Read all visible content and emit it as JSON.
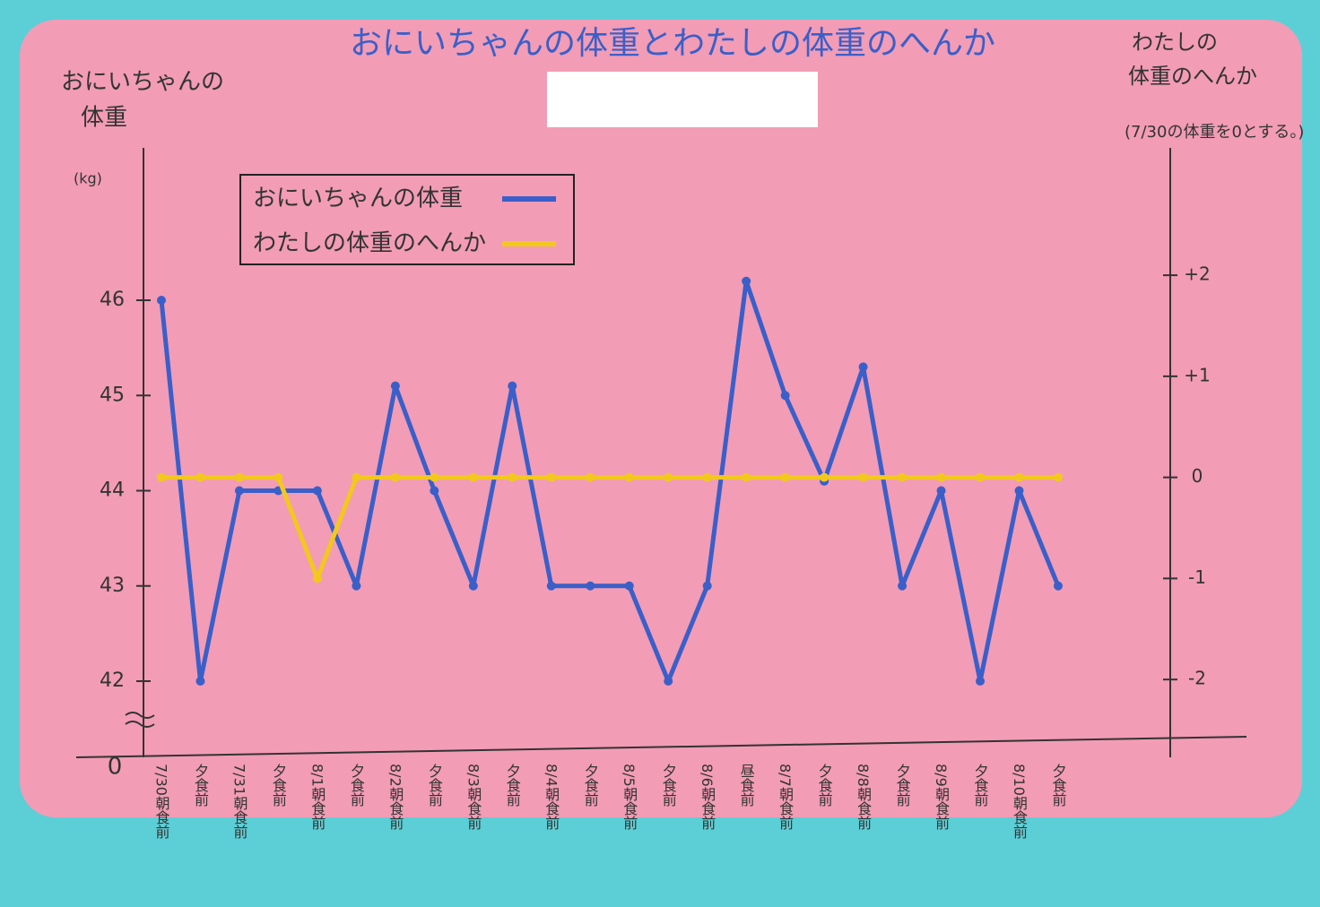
{
  "chart_data": {
    "type": "line",
    "title": "おにいちゃんの体重とわたしの体重のへんか",
    "y_label": [
      "おにいちゃんの",
      "体重"
    ],
    "y_unit": "(kg)",
    "y2_label": [
      "わたしの",
      "体重のへんか",
      "(7/30の体重を0とする。)"
    ],
    "origin_label": "0",
    "categories": [
      "7/30朝食前",
      "夕食前",
      "7/31朝食前",
      "夕食前",
      "8/1朝食前",
      "夕食前",
      "8/2朝食前",
      "夕食前",
      "8/3朝食前",
      "夕食前",
      "8/4朝食前",
      "夕食前",
      "8/5朝食前",
      "夕食前",
      "8/6朝食前",
      "昼食前",
      "8/7朝食前",
      "夕食前",
      "8/8朝食前",
      "夕食前",
      "8/9朝食前",
      "夕食前",
      "8/10朝食前",
      "夕食前"
    ],
    "series": [
      {
        "name": "おにいちゃんの体重",
        "color": "#3a5fc8",
        "values": [
          46,
          42,
          44,
          44,
          44,
          43,
          45.1,
          44,
          43,
          45.1,
          43,
          43,
          43,
          42,
          43,
          46.2,
          45,
          44.1,
          45.3,
          43,
          44,
          42,
          44,
          43
        ]
      },
      {
        "name": "わたしの体重のへんか",
        "color": "#f2c81e",
        "axis": "y2",
        "values": [
          0,
          0,
          0,
          0,
          -1,
          0,
          0,
          0,
          0,
          0,
          0,
          0,
          0,
          0,
          0,
          0,
          0,
          0,
          0,
          0,
          0,
          0,
          0,
          0
        ]
      }
    ],
    "ylim": [
      41.2,
      47.6
    ],
    "yticks": [
      42,
      43,
      44,
      45,
      46
    ],
    "y2lim": [
      -2.77,
      3.26
    ],
    "y2ticks": [
      {
        "value": -2,
        "label": "-2"
      },
      {
        "value": -1,
        "label": "-1"
      },
      0,
      {
        "value": 1,
        "label": "+1"
      },
      {
        "value": 2,
        "label": "+2"
      }
    ],
    "grid": false
  }
}
